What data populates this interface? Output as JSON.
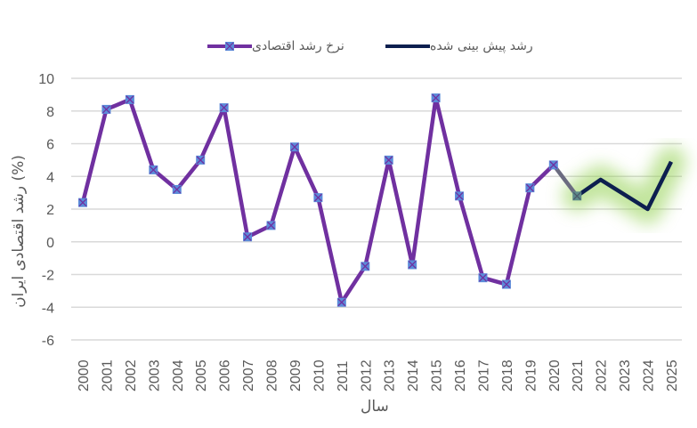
{
  "chart_data": {
    "type": "line",
    "title": "",
    "xlabel": "سال",
    "ylabel": "رشد اقتصادی ایران (%)",
    "ylim": [
      -6,
      10
    ],
    "yticks": [
      10,
      8,
      6,
      4,
      2,
      0,
      -2,
      -4,
      -6
    ],
    "grid": true,
    "legend_position": "top",
    "categories": [
      "2000",
      "2001",
      "2002",
      "2003",
      "2004",
      "2005",
      "2006",
      "2007",
      "2008",
      "2009",
      "2010",
      "2011",
      "2012",
      "2013",
      "2014",
      "2015",
      "2016",
      "2017",
      "2018",
      "2019",
      "2020",
      "2021",
      "2022",
      "2023",
      "2024",
      "2025"
    ],
    "series": [
      {
        "name": "نرخ رشد اقتصادی",
        "color": "#7030A0",
        "marker_color": "#5B8BD9",
        "marker": "x-square",
        "values": [
          2.4,
          8.1,
          8.7,
          4.4,
          3.2,
          5.0,
          8.2,
          0.3,
          1.0,
          5.8,
          2.7,
          -3.7,
          -1.5,
          5.0,
          -1.4,
          8.8,
          2.8,
          -2.2,
          -2.6,
          3.3,
          4.7,
          2.8,
          null,
          null,
          null,
          null
        ]
      },
      {
        "name": "رشد پیش بینی شده",
        "color": "#0D1F4F",
        "glow_color": "#92D050",
        "values": [
          null,
          null,
          null,
          null,
          null,
          null,
          null,
          null,
          null,
          null,
          null,
          null,
          null,
          null,
          null,
          null,
          null,
          null,
          null,
          null,
          null,
          2.8,
          3.8,
          2.9,
          2.0,
          4.9
        ]
      }
    ],
    "transition_segment_color": "#6B6B80"
  },
  "legend": {
    "items": [
      {
        "label": "رشد پیش بینی شده",
        "color": "#0D1F4F"
      },
      {
        "label": "نرخ رشد اقتصادی",
        "color": "#7030A0"
      }
    ]
  },
  "axis": {
    "x_title": "سال",
    "y_title": "رشد اقتصادی ایران (%)"
  }
}
